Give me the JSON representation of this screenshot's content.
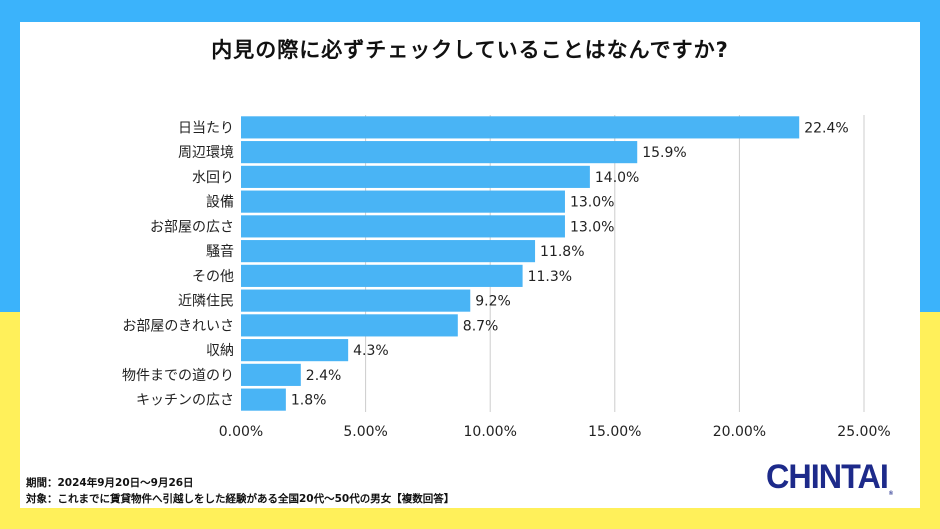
{
  "colors": {
    "bg_top": "#3bb3fb",
    "bg_bottom": "#fff05a",
    "bar": "#49b4f5",
    "grid": "#cccccc",
    "logo": "#1d2a8a"
  },
  "title": "内見の際に必ずチェックしていることはなんですか?",
  "footer": {
    "period": "期間：2024年9月20日〜9月26日",
    "target": "対象：これまでに賃貸物件へ引越しをした経験がある全国20代〜50代の男女【複数回答】"
  },
  "logo": {
    "text": "CHINTAI",
    "reg": "®"
  },
  "chart_data": {
    "type": "bar",
    "orientation": "horizontal",
    "title": "内見の際に必ずチェックしていることはなんですか?",
    "xlabel": "",
    "ylabel": "",
    "categories": [
      "日当たり",
      "周辺環境",
      "水回り",
      "設備",
      "お部屋の広さ",
      "騒音",
      "その他",
      "近隣住民",
      "お部屋のきれいさ",
      "収納",
      "物件までの道のり",
      "キッチンの広さ"
    ],
    "values": [
      22.4,
      15.9,
      14.0,
      13.0,
      13.0,
      11.8,
      11.3,
      9.2,
      8.7,
      4.3,
      2.4,
      1.8
    ],
    "value_labels": [
      "22.4%",
      "15.9%",
      "14.0%",
      "13.0%",
      "13.0%",
      "11.8%",
      "11.3%",
      "9.2%",
      "8.7%",
      "4.3%",
      "2.4%",
      "1.8%"
    ],
    "xlim": [
      0,
      25
    ],
    "xticks": [
      0,
      5,
      10,
      15,
      20,
      25
    ],
    "xtick_labels": [
      "0.00%",
      "5.00%",
      "10.00%",
      "15.00%",
      "20.00%",
      "25.00%"
    ],
    "grid": "vertical",
    "legend": "none"
  }
}
